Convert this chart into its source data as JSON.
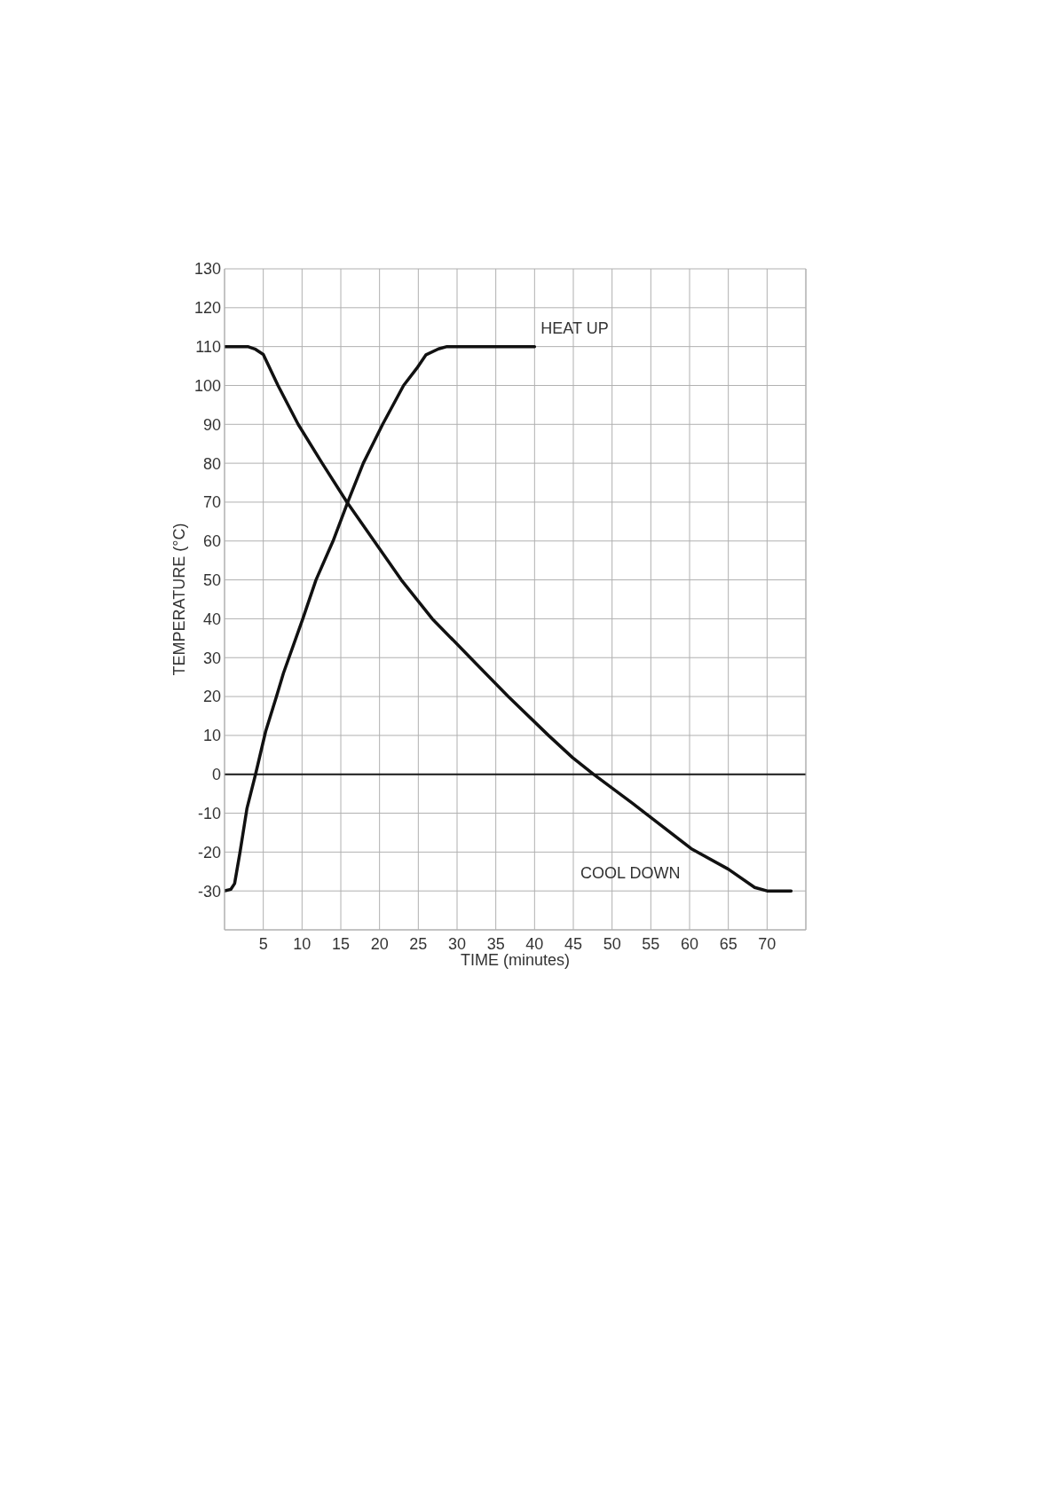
{
  "chart_data": {
    "type": "line",
    "xlabel": "TIME (minutes)",
    "ylabel": "TEMPERATURE (°C)",
    "xlim": [
      0,
      75
    ],
    "xticks": [
      5,
      10,
      15,
      20,
      25,
      30,
      35,
      40,
      45,
      50,
      55,
      60,
      65,
      70
    ],
    "ylim": [
      -40,
      130
    ],
    "yticks": [
      -30,
      -20,
      -10,
      0,
      10,
      20,
      30,
      40,
      50,
      60,
      70,
      80,
      90,
      100,
      110,
      120,
      130
    ],
    "grid": true,
    "ref_lines": [
      {
        "axis": "y",
        "value": 0,
        "color": "#1a1a1a"
      }
    ],
    "series": [
      {
        "name": "HEAT UP",
        "color": "#111111",
        "x": [
          0,
          0.8,
          1.3,
          2,
          2.9,
          4,
          5.3,
          6.7,
          7.6,
          10.1,
          11.8,
          14,
          15.9,
          17.9,
          20.4,
          23.1,
          24.8,
          26,
          27.6,
          28.7,
          40
        ],
        "values": [
          -30,
          -29.6,
          -28.1,
          -20,
          -8.7,
          0,
          11,
          20,
          26,
          40,
          50,
          60,
          70,
          80,
          90,
          100,
          104.4,
          107.9,
          109.4,
          110,
          110
        ]
      },
      {
        "name": "COOL DOWN",
        "color": "#111111",
        "x": [
          0,
          3,
          4,
          5,
          6.9,
          9.5,
          12.6,
          15.8,
          19.3,
          22.8,
          26.8,
          31.7,
          36.6,
          41.8,
          44.9,
          47.6,
          52.6,
          54.3,
          60.2,
          65,
          68.4,
          70,
          73.1
        ],
        "values": [
          110,
          110,
          109.3,
          108,
          100,
          90,
          80,
          70,
          60,
          50,
          40,
          30,
          20,
          10,
          4.3,
          0,
          -7.4,
          -10,
          -19.1,
          -24.4,
          -29.1,
          -30,
          -30
        ]
      }
    ]
  }
}
